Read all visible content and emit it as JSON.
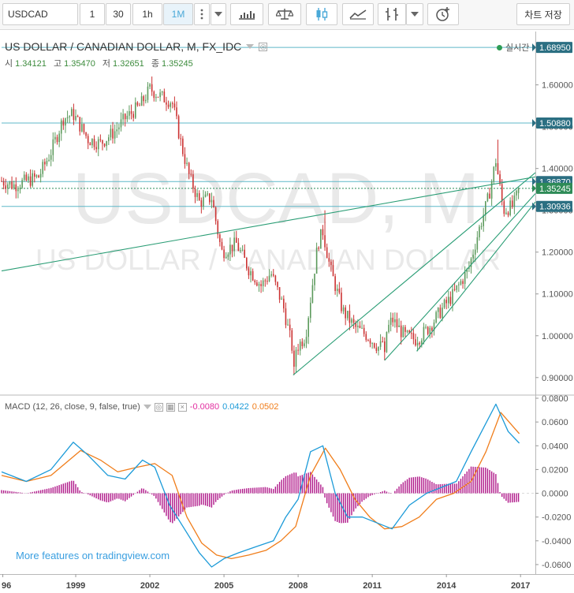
{
  "toolbar": {
    "symbol": "USDCAD",
    "intervals": [
      "1",
      "30",
      "1h",
      "1M"
    ],
    "active_interval": "1M",
    "chart_save_label": "차트 저장",
    "icons": [
      "more-vertical-icon",
      "dropdown-caret-icon",
      "bar-style-icon",
      "compare-scale-icon",
      "candlestick-icon",
      "line-style-icon",
      "indicator-icon",
      "alert-clock-icon"
    ]
  },
  "legend": {
    "title": "US DOLLAR / CANADIAN DOLLAR, M, FX_IDC",
    "open_label": "시",
    "open": "1.34121",
    "high_label": "고",
    "high": "1.35470",
    "low_label": "저",
    "low": "1.32651",
    "close_label": "종",
    "close": "1.35245",
    "realtime": "실시간"
  },
  "watermark": {
    "symbol": "USDCAD, M",
    "name": "US DOLLAR / CANADIAN DOLLAR"
  },
  "price_levels": [
    {
      "value": "1.68950",
      "type": "horizontal-line"
    },
    {
      "value": "1.50880",
      "type": "horizontal-line"
    },
    {
      "value": "1.36870",
      "type": "horizontal-line"
    },
    {
      "value": "1.35245",
      "type": "last-price"
    },
    {
      "value": "1.30936",
      "type": "horizontal-line"
    }
  ],
  "macd_legend": {
    "label": "MACD (12, 26, close, 9, false, true)",
    "histogram": "-0.0080",
    "macd": "0.0422",
    "signal": "0.0502"
  },
  "promo": "More features on tradingview.com",
  "colors": {
    "up": "#5c9a5c",
    "down": "#c33",
    "hline": "#5fb8c8",
    "trend": "#2a9d75",
    "macd": "#1b9ad8",
    "signal": "#f07d1a",
    "histogram": "#b0188a"
  },
  "chart_data": [
    {
      "type": "candlestick",
      "title": "US DOLLAR / CANADIAN DOLLAR, M, FX_IDC",
      "ylim": [
        0.86,
        1.72
      ],
      "y_ticks": [
        "0.90000",
        "1.00000",
        "1.10000",
        "1.20000",
        "1.30000",
        "1.40000",
        "1.50000",
        "1.60000"
      ],
      "x_ticks": [
        "96",
        "1999",
        "2002",
        "2005",
        "2008",
        "2011",
        "2014",
        "2017"
      ],
      "close_path": [
        [
          1996.0,
          1.37
        ],
        [
          1996.5,
          1.36
        ],
        [
          1997.0,
          1.37
        ],
        [
          1997.5,
          1.38
        ],
        [
          1998.0,
          1.44
        ],
        [
          1998.5,
          1.52
        ],
        [
          1998.9,
          1.53
        ],
        [
          1999.5,
          1.47
        ],
        [
          2000.0,
          1.46
        ],
        [
          2000.6,
          1.49
        ],
        [
          2001.0,
          1.52
        ],
        [
          2001.6,
          1.55
        ],
        [
          2002.0,
          1.59
        ],
        [
          2002.5,
          1.57
        ],
        [
          2002.9,
          1.56
        ],
        [
          2003.3,
          1.45
        ],
        [
          2003.6,
          1.38
        ],
        [
          2004.0,
          1.32
        ],
        [
          2004.5,
          1.33
        ],
        [
          2004.9,
          1.2
        ],
        [
          2005.5,
          1.22
        ],
        [
          2006.0,
          1.16
        ],
        [
          2006.5,
          1.12
        ],
        [
          2006.9,
          1.15
        ],
        [
          2007.4,
          1.07
        ],
        [
          2007.8,
          0.96
        ],
        [
          2008.3,
          1.0
        ],
        [
          2008.8,
          1.22
        ],
        [
          2009.0,
          1.25
        ],
        [
          2009.3,
          1.16
        ],
        [
          2009.8,
          1.06
        ],
        [
          2010.3,
          1.02
        ],
        [
          2010.8,
          1.0
        ],
        [
          2011.3,
          0.97
        ],
        [
          2011.8,
          1.04
        ],
        [
          2012.3,
          1.0
        ],
        [
          2012.8,
          0.99
        ],
        [
          2013.3,
          1.02
        ],
        [
          2013.9,
          1.07
        ],
        [
          2014.3,
          1.1
        ],
        [
          2014.9,
          1.16
        ],
        [
          2015.3,
          1.25
        ],
        [
          2015.7,
          1.33
        ],
        [
          2016.0,
          1.42
        ],
        [
          2016.3,
          1.3
        ],
        [
          2016.7,
          1.31
        ],
        [
          2016.95,
          1.35245
        ]
      ],
      "low_points": [
        [
          2007.8,
          0.906
        ],
        [
          2011.5,
          0.941
        ],
        [
          2012.8,
          0.963
        ]
      ],
      "high_points": [
        [
          2002.1,
          1.62
        ],
        [
          2009.1,
          1.3
        ],
        [
          2016.05,
          1.469
        ]
      ]
    },
    {
      "type": "line",
      "title": "MACD (12, 26, close, 9, false, true)",
      "ylim": [
        -0.068,
        0.082
      ],
      "y_ticks": [
        "0.0800",
        "0.0600",
        "0.0400",
        "0.0200",
        "0.0000",
        "-0.0200",
        "-0.0400",
        "-0.0600"
      ],
      "series": [
        {
          "name": "MACD",
          "x": [
            1996.0,
            1997.0,
            1998.0,
            1998.9,
            1999.5,
            2000.3,
            2001.0,
            2001.7,
            2002.2,
            2002.8,
            2003.4,
            2004.0,
            2004.5,
            2005.0,
            2005.6,
            2006.3,
            2007.0,
            2007.5,
            2008.0,
            2008.5,
            2009.0,
            2009.5,
            2010.0,
            2010.6,
            2011.2,
            2011.8,
            2012.5,
            2013.2,
            2013.8,
            2014.4,
            2015.0,
            2015.5,
            2016.0,
            2016.5,
            2016.95
          ],
          "values": [
            0.018,
            0.01,
            0.02,
            0.043,
            0.032,
            0.015,
            0.012,
            0.028,
            0.022,
            -0.01,
            -0.03,
            -0.05,
            -0.062,
            -0.055,
            -0.05,
            -0.045,
            -0.04,
            -0.02,
            -0.005,
            0.035,
            0.04,
            0.0,
            -0.02,
            -0.02,
            -0.025,
            -0.03,
            -0.01,
            0.0,
            0.005,
            0.01,
            0.035,
            0.055,
            0.075,
            0.052,
            0.0422
          ]
        },
        {
          "name": "Signal",
          "x": [
            1996.0,
            1997.0,
            1998.0,
            1999.2,
            2000.0,
            2000.7,
            2001.5,
            2002.2,
            2002.9,
            2003.5,
            2004.1,
            2004.7,
            2005.3,
            2006.0,
            2006.7,
            2007.3,
            2007.9,
            2008.5,
            2009.1,
            2009.7,
            2010.3,
            2010.9,
            2011.5,
            2012.2,
            2012.9,
            2013.6,
            2014.3,
            2015.0,
            2015.6,
            2016.2,
            2016.95
          ],
          "values": [
            0.015,
            0.01,
            0.015,
            0.036,
            0.028,
            0.018,
            0.022,
            0.025,
            0.015,
            -0.02,
            -0.042,
            -0.052,
            -0.055,
            -0.052,
            -0.048,
            -0.04,
            -0.028,
            0.015,
            0.038,
            0.02,
            -0.005,
            -0.02,
            -0.03,
            -0.028,
            -0.02,
            -0.005,
            0.0,
            0.01,
            0.035,
            0.068,
            0.0502
          ]
        }
      ]
    }
  ]
}
